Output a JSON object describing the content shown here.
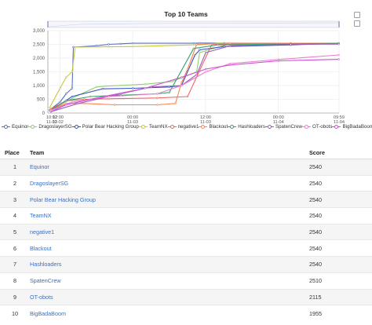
{
  "chart": {
    "title": "Top 10 Teams",
    "toolbox": [
      "restore-icon",
      "save-image-icon"
    ]
  },
  "chart_data": {
    "type": "line",
    "title": "Top 10 Teams",
    "y_ticks": [
      "3,000",
      "2,500",
      "2,000",
      "1,500",
      "1,000",
      "500",
      "0"
    ],
    "ylim": [
      0,
      3000
    ],
    "x_ticks": [
      {
        "time": "10:02",
        "date": "11-02"
      },
      {
        "time": "12:00",
        "date": "11-02"
      },
      {
        "time": "00:00",
        "date": "11-03"
      },
      {
        "time": "12:00",
        "date": "11-03"
      },
      {
        "time": "00:00",
        "date": "11-04"
      },
      {
        "time": "09:59",
        "date": "11-04"
      }
    ],
    "x_axis_unit": "hours since 11-02 10:02",
    "xlim": [
      0,
      47.95
    ],
    "legend_position": "bottom",
    "grid": true,
    "series": [
      {
        "name": "Equinor",
        "color": "#5470c6",
        "points": [
          [
            0.5,
            150
          ],
          [
            2,
            400
          ],
          [
            3,
            700
          ],
          [
            4,
            900
          ],
          [
            4.2,
            2400
          ],
          [
            8,
            2450
          ],
          [
            10,
            2500
          ],
          [
            12,
            2520
          ],
          [
            14,
            2540
          ],
          [
            24,
            2540
          ],
          [
            25,
            2550
          ],
          [
            29,
            2545
          ],
          [
            40,
            2540
          ],
          [
            47.9,
            2540
          ]
        ]
      },
      {
        "name": "DragoslayerSG",
        "color": "#91cc75",
        "points": [
          [
            0.5,
            100
          ],
          [
            2,
            300
          ],
          [
            5,
            650
          ],
          [
            8,
            950
          ],
          [
            9.5,
            980
          ],
          [
            16,
            1050
          ],
          [
            20.5,
            1150
          ],
          [
            24.5,
            1500
          ],
          [
            25,
            2200
          ],
          [
            26.5,
            2300
          ],
          [
            30,
            2520
          ],
          [
            40,
            2540
          ],
          [
            47.9,
            2540
          ]
        ]
      },
      {
        "name": "Polar Bear Hacking Group",
        "color": "#3a52c4",
        "points": [
          [
            0.3,
            100
          ],
          [
            1.5,
            250
          ],
          [
            4,
            600
          ],
          [
            9,
            880
          ],
          [
            14,
            900
          ],
          [
            20,
            950
          ],
          [
            22,
            1000
          ],
          [
            24.2,
            2100
          ],
          [
            25,
            2300
          ],
          [
            29,
            2420
          ],
          [
            40,
            2480
          ],
          [
            47.9,
            2540
          ]
        ]
      },
      {
        "name": "TeamNX",
        "color": "#c8c83a",
        "points": [
          [
            0.3,
            200
          ],
          [
            2,
            900
          ],
          [
            3,
            1300
          ],
          [
            4,
            1500
          ],
          [
            4.5,
            2400
          ],
          [
            14,
            2420
          ],
          [
            25,
            2490
          ],
          [
            28,
            2540
          ],
          [
            47.9,
            2540
          ]
        ]
      },
      {
        "name": "negative1",
        "color": "#ee6666",
        "points": [
          [
            0.5,
            150
          ],
          [
            3,
            450
          ],
          [
            6,
            500
          ],
          [
            10,
            520
          ],
          [
            18,
            550
          ],
          [
            23,
            600
          ],
          [
            27,
            2500
          ],
          [
            40,
            2540
          ],
          [
            47.9,
            2540
          ]
        ]
      },
      {
        "name": "Blackout",
        "color": "#fc8452",
        "points": [
          [
            0.5,
            120
          ],
          [
            3,
            350
          ],
          [
            6,
            350
          ],
          [
            11,
            300
          ],
          [
            18,
            300
          ],
          [
            21,
            350
          ],
          [
            22,
            1100
          ],
          [
            23,
            1600
          ],
          [
            24.5,
            2500
          ],
          [
            30,
            2540
          ],
          [
            47.9,
            2540
          ]
        ]
      },
      {
        "name": "Hashloaders",
        "color": "#3ba272",
        "points": [
          [
            0.5,
            100
          ],
          [
            3,
            450
          ],
          [
            7,
            600
          ],
          [
            12,
            650
          ],
          [
            18,
            700
          ],
          [
            20,
            750
          ],
          [
            24,
            2350
          ],
          [
            28,
            2480
          ],
          [
            47.9,
            2540
          ]
        ]
      },
      {
        "name": "SpatenCrew",
        "color": "#9a60b4",
        "points": [
          [
            0.5,
            50
          ],
          [
            5,
            350
          ],
          [
            12,
            700
          ],
          [
            17,
            950
          ],
          [
            22,
            1000
          ],
          [
            24.5,
            1400
          ],
          [
            26,
            2200
          ],
          [
            30,
            2450
          ],
          [
            40,
            2500
          ],
          [
            47.9,
            2510
          ]
        ]
      },
      {
        "name": "OT-obots",
        "color": "#ea7ccc",
        "points": [
          [
            0.5,
            100
          ],
          [
            4,
            400
          ],
          [
            10,
            600
          ],
          [
            18,
            700
          ],
          [
            22,
            1000
          ],
          [
            26,
            1500
          ],
          [
            30,
            1800
          ],
          [
            38,
            1950
          ],
          [
            47.9,
            2115
          ]
        ]
      },
      {
        "name": "BigBadaBoom",
        "color": "#cc4fd6",
        "points": [
          [
            0.5,
            50
          ],
          [
            3,
            300
          ],
          [
            8,
            550
          ],
          [
            16,
            900
          ],
          [
            22,
            1300
          ],
          [
            26,
            1600
          ],
          [
            30,
            1750
          ],
          [
            38,
            1900
          ],
          [
            47.9,
            1955
          ]
        ]
      }
    ]
  },
  "scoreboard": {
    "headers": {
      "place": "Place",
      "team": "Team",
      "score": "Score"
    },
    "rows": [
      {
        "place": "1",
        "team": "Equinor",
        "score": "2540"
      },
      {
        "place": "2",
        "team": "DragoslayerSG",
        "score": "2540"
      },
      {
        "place": "3",
        "team": "Polar Bear Hacking Group",
        "score": "2540"
      },
      {
        "place": "4",
        "team": "TeamNX",
        "score": "2540"
      },
      {
        "place": "5",
        "team": "negative1",
        "score": "2540"
      },
      {
        "place": "6",
        "team": "Blackout",
        "score": "2540"
      },
      {
        "place": "7",
        "team": "Hashloaders",
        "score": "2540"
      },
      {
        "place": "8",
        "team": "SpatenCrew",
        "score": "2510"
      },
      {
        "place": "9",
        "team": "OT-obots",
        "score": "2115"
      },
      {
        "place": "10",
        "team": "BigBadaBoom",
        "score": "1955"
      }
    ]
  }
}
